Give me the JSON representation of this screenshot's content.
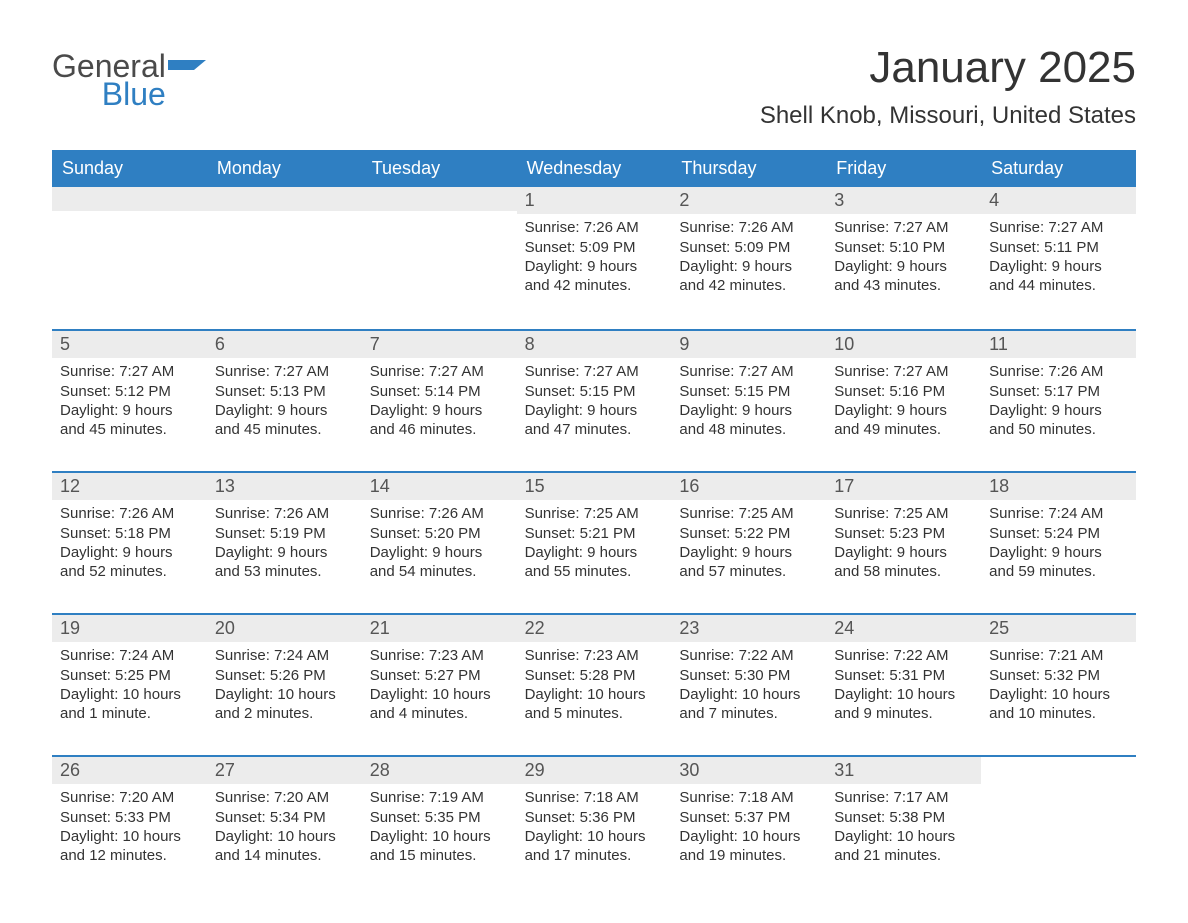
{
  "logo": {
    "word1": "General",
    "word2": "Blue",
    "accent": "#2f7fc2",
    "gray": "#4a4a4a"
  },
  "title": "January 2025",
  "location": "Shell Knob, Missouri, United States",
  "colors": {
    "header_bg": "#2f7fc2",
    "header_text": "#ffffff",
    "daynum_bg": "#ececec",
    "week_border": "#2f7fc2",
    "body_text": "#333333",
    "page_bg": "#ffffff"
  },
  "dayNames": [
    "Sunday",
    "Monday",
    "Tuesday",
    "Wednesday",
    "Thursday",
    "Friday",
    "Saturday"
  ],
  "labels": {
    "sunrise": "Sunrise:",
    "sunset": "Sunset:",
    "daylight": "Daylight:"
  },
  "weeks": [
    [
      null,
      null,
      null,
      {
        "n": "1",
        "sunrise": "7:26 AM",
        "sunset": "5:09 PM",
        "daylight": "9 hours and 42 minutes."
      },
      {
        "n": "2",
        "sunrise": "7:26 AM",
        "sunset": "5:09 PM",
        "daylight": "9 hours and 42 minutes."
      },
      {
        "n": "3",
        "sunrise": "7:27 AM",
        "sunset": "5:10 PM",
        "daylight": "9 hours and 43 minutes."
      },
      {
        "n": "4",
        "sunrise": "7:27 AM",
        "sunset": "5:11 PM",
        "daylight": "9 hours and 44 minutes."
      }
    ],
    [
      {
        "n": "5",
        "sunrise": "7:27 AM",
        "sunset": "5:12 PM",
        "daylight": "9 hours and 45 minutes."
      },
      {
        "n": "6",
        "sunrise": "7:27 AM",
        "sunset": "5:13 PM",
        "daylight": "9 hours and 45 minutes."
      },
      {
        "n": "7",
        "sunrise": "7:27 AM",
        "sunset": "5:14 PM",
        "daylight": "9 hours and 46 minutes."
      },
      {
        "n": "8",
        "sunrise": "7:27 AM",
        "sunset": "5:15 PM",
        "daylight": "9 hours and 47 minutes."
      },
      {
        "n": "9",
        "sunrise": "7:27 AM",
        "sunset": "5:15 PM",
        "daylight": "9 hours and 48 minutes."
      },
      {
        "n": "10",
        "sunrise": "7:27 AM",
        "sunset": "5:16 PM",
        "daylight": "9 hours and 49 minutes."
      },
      {
        "n": "11",
        "sunrise": "7:26 AM",
        "sunset": "5:17 PM",
        "daylight": "9 hours and 50 minutes."
      }
    ],
    [
      {
        "n": "12",
        "sunrise": "7:26 AM",
        "sunset": "5:18 PM",
        "daylight": "9 hours and 52 minutes."
      },
      {
        "n": "13",
        "sunrise": "7:26 AM",
        "sunset": "5:19 PM",
        "daylight": "9 hours and 53 minutes."
      },
      {
        "n": "14",
        "sunrise": "7:26 AM",
        "sunset": "5:20 PM",
        "daylight": "9 hours and 54 minutes."
      },
      {
        "n": "15",
        "sunrise": "7:25 AM",
        "sunset": "5:21 PM",
        "daylight": "9 hours and 55 minutes."
      },
      {
        "n": "16",
        "sunrise": "7:25 AM",
        "sunset": "5:22 PM",
        "daylight": "9 hours and 57 minutes."
      },
      {
        "n": "17",
        "sunrise": "7:25 AM",
        "sunset": "5:23 PM",
        "daylight": "9 hours and 58 minutes."
      },
      {
        "n": "18",
        "sunrise": "7:24 AM",
        "sunset": "5:24 PM",
        "daylight": "9 hours and 59 minutes."
      }
    ],
    [
      {
        "n": "19",
        "sunrise": "7:24 AM",
        "sunset": "5:25 PM",
        "daylight": "10 hours and 1 minute."
      },
      {
        "n": "20",
        "sunrise": "7:24 AM",
        "sunset": "5:26 PM",
        "daylight": "10 hours and 2 minutes."
      },
      {
        "n": "21",
        "sunrise": "7:23 AM",
        "sunset": "5:27 PM",
        "daylight": "10 hours and 4 minutes."
      },
      {
        "n": "22",
        "sunrise": "7:23 AM",
        "sunset": "5:28 PM",
        "daylight": "10 hours and 5 minutes."
      },
      {
        "n": "23",
        "sunrise": "7:22 AM",
        "sunset": "5:30 PM",
        "daylight": "10 hours and 7 minutes."
      },
      {
        "n": "24",
        "sunrise": "7:22 AM",
        "sunset": "5:31 PM",
        "daylight": "10 hours and 9 minutes."
      },
      {
        "n": "25",
        "sunrise": "7:21 AM",
        "sunset": "5:32 PM",
        "daylight": "10 hours and 10 minutes."
      }
    ],
    [
      {
        "n": "26",
        "sunrise": "7:20 AM",
        "sunset": "5:33 PM",
        "daylight": "10 hours and 12 minutes."
      },
      {
        "n": "27",
        "sunrise": "7:20 AM",
        "sunset": "5:34 PM",
        "daylight": "10 hours and 14 minutes."
      },
      {
        "n": "28",
        "sunrise": "7:19 AM",
        "sunset": "5:35 PM",
        "daylight": "10 hours and 15 minutes."
      },
      {
        "n": "29",
        "sunrise": "7:18 AM",
        "sunset": "5:36 PM",
        "daylight": "10 hours and 17 minutes."
      },
      {
        "n": "30",
        "sunrise": "7:18 AM",
        "sunset": "5:37 PM",
        "daylight": "10 hours and 19 minutes."
      },
      {
        "n": "31",
        "sunrise": "7:17 AM",
        "sunset": "5:38 PM",
        "daylight": "10 hours and 21 minutes."
      },
      null
    ]
  ]
}
